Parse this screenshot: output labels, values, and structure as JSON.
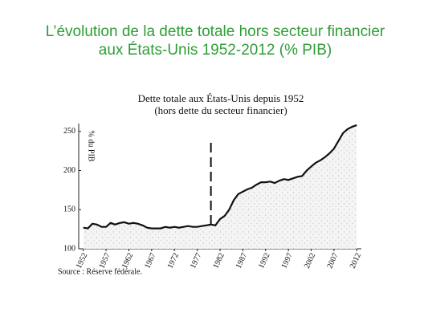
{
  "slide_title": [
    "L’évolution de la dette totale hors secteur financier",
    "aux États-Unis 1952-2012 (% PIB)"
  ],
  "chart_data": {
    "type": "area",
    "title": "Dette totale aux États-Unis depuis 1952",
    "subtitle": "(hors dette du secteur financier)",
    "ylabel": "% du PIB",
    "source": "Source : Réserve fédérale.",
    "x": [
      1952,
      1953,
      1954,
      1955,
      1956,
      1957,
      1958,
      1959,
      1960,
      1961,
      1962,
      1963,
      1964,
      1965,
      1966,
      1967,
      1968,
      1969,
      1970,
      1971,
      1972,
      1973,
      1974,
      1975,
      1976,
      1977,
      1978,
      1979,
      1980,
      1981,
      1982,
      1983,
      1984,
      1985,
      1986,
      1987,
      1988,
      1989,
      1990,
      1991,
      1992,
      1993,
      1994,
      1995,
      1996,
      1997,
      1998,
      1999,
      2000,
      2001,
      2002,
      2003,
      2004,
      2005,
      2006,
      2007,
      2008,
      2009,
      2010,
      2011,
      2012
    ],
    "values": [
      127,
      126,
      132,
      131,
      128,
      128,
      133,
      131,
      133,
      134,
      132,
      133,
      132,
      130,
      127,
      126,
      126,
      126,
      128,
      127,
      128,
      127,
      128,
      129,
      128,
      128,
      129,
      130,
      131,
      130,
      138,
      142,
      150,
      162,
      170,
      173,
      176,
      178,
      182,
      185,
      185,
      186,
      184,
      187,
      189,
      188,
      190,
      192,
      193,
      200,
      205,
      210,
      213,
      217,
      222,
      228,
      238,
      248,
      253,
      256,
      258
    ],
    "color": "#111111",
    "reference_line": {
      "x": 1980
    },
    "xlim": [
      1951,
      2013
    ],
    "xticks": [
      1952,
      1957,
      1962,
      1967,
      1972,
      1977,
      1982,
      1987,
      1992,
      1997,
      2002,
      2007,
      2012
    ],
    "ylim": [
      100,
      260
    ],
    "yticks": [
      100,
      150,
      200,
      250
    ]
  }
}
